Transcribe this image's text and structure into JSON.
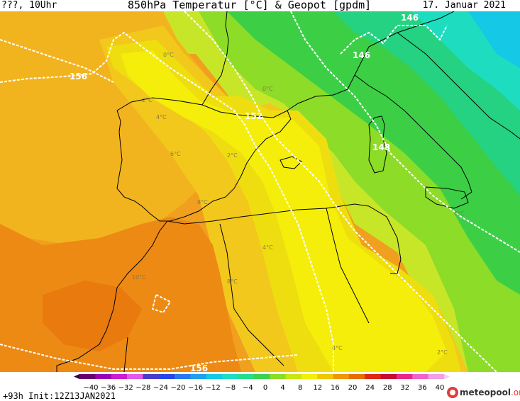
{
  "header": {
    "left": "???, 10Uhr",
    "title": "850hPa Temperatur [°C] & Geopot [gpdm]",
    "date": "17. Januar 2021"
  },
  "footer": {
    "run": "+93h Init:12Z13JAN2021",
    "logo": "meteopool",
    "logo_suffix": ".org"
  },
  "colorbar": {
    "ticks": [
      "−40",
      "−36",
      "−32",
      "−28",
      "−24",
      "−20",
      "−16",
      "−12",
      "−8",
      "−4",
      "0",
      "4",
      "8",
      "12",
      "16",
      "20",
      "24",
      "28",
      "32",
      "36",
      "40"
    ],
    "colors": [
      "#6a0070",
      "#9a00b4",
      "#c81ed2",
      "#e05ae8",
      "#4b3cc8",
      "#2846e6",
      "#2878f0",
      "#1ea0f0",
      "#14c8e6",
      "#1edcc8",
      "#28dc8c",
      "#3cd250",
      "#8cdc28",
      "#c8e614",
      "#f0f00a",
      "#f0c800",
      "#f09600",
      "#e66e00",
      "#dc2814",
      "#c80a32",
      "#e6288c",
      "#f064c8",
      "#f0a0e6"
    ]
  },
  "contours": {
    "geopot": [
      "156",
      "152",
      "148",
      "146",
      "146",
      "156"
    ],
    "temp": [
      "0°C",
      "0°C",
      "2°C",
      "4°C",
      "6°C",
      "2°C",
      "8°C",
      "4°C",
      "10°C",
      "8°C",
      "6°C",
      "4°C",
      "2°C"
    ]
  },
  "palette": {
    "orange_dark": "#ec8a14",
    "orange": "#f0a01e",
    "orange_light": "#f2b41e",
    "yellow_orange": "#f2c81c",
    "yellow": "#eede10",
    "yellow_bright": "#f4ee0a",
    "yellow_green": "#c8e628",
    "green_light": "#8cdc28",
    "green": "#3ccf46",
    "green_teal": "#24d282",
    "teal": "#1edcc0",
    "cyan": "#14c8e6"
  }
}
